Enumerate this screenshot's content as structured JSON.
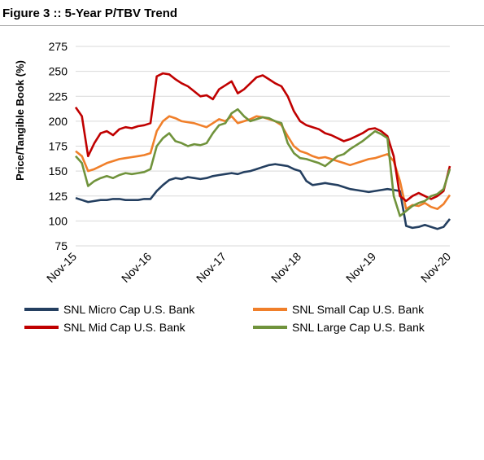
{
  "figure": {
    "title": "Figure 3 :: 5-Year P/TBV Trend"
  },
  "chart_data": {
    "type": "line",
    "title": "Figure 3 :: 5-Year P/TBV Trend",
    "xlabel": "",
    "ylabel": "Price/Tangible Book (%)",
    "ylim": [
      75,
      275
    ],
    "yticks": [
      "275",
      "250",
      "225",
      "200",
      "175",
      "150",
      "125",
      "100",
      "75"
    ],
    "xticks": [
      "Nov-15",
      "Nov-16",
      "Nov-17",
      "Nov-18",
      "Nov-19",
      "Nov-20"
    ],
    "x_unit": "months since Nov-15",
    "grid": true,
    "legend_position": "bottom",
    "series": [
      {
        "name": "SNL Micro Cap U.S. Bank",
        "color": "#243f60",
        "x": [
          0,
          1,
          2,
          3,
          4,
          5,
          6,
          7,
          8,
          9,
          10,
          11,
          12,
          13,
          14,
          15,
          16,
          17,
          18,
          19,
          20,
          21,
          22,
          23,
          24,
          25,
          26,
          27,
          28,
          29,
          30,
          31,
          32,
          33,
          34,
          35,
          36,
          37,
          38,
          39,
          40,
          41,
          42,
          43,
          44,
          45,
          46,
          47,
          48,
          49,
          50,
          51,
          52,
          53,
          54,
          55,
          56,
          57,
          58,
          59,
          60
        ],
        "values": [
          123,
          121,
          119,
          120,
          121,
          121,
          122,
          122,
          121,
          121,
          121,
          122,
          122,
          130,
          136,
          141,
          143,
          142,
          144,
          143,
          142,
          143,
          145,
          146,
          147,
          148,
          147,
          149,
          150,
          152,
          154,
          156,
          157,
          156,
          155,
          152,
          150,
          140,
          136,
          137,
          138,
          137,
          136,
          134,
          132,
          131,
          130,
          129,
          130,
          131,
          132,
          131,
          130,
          95,
          93,
          94,
          96,
          94,
          92,
          94,
          102
        ]
      },
      {
        "name": "SNL Small Cap U.S. Bank",
        "color": "#f07f2a",
        "x": [
          0,
          1,
          2,
          3,
          4,
          5,
          6,
          7,
          8,
          9,
          10,
          11,
          12,
          13,
          14,
          15,
          16,
          17,
          18,
          19,
          20,
          21,
          22,
          23,
          24,
          25,
          26,
          27,
          28,
          29,
          30,
          31,
          32,
          33,
          34,
          35,
          36,
          37,
          38,
          39,
          40,
          41,
          42,
          43,
          44,
          45,
          46,
          47,
          48,
          49,
          50,
          51,
          52,
          53,
          54,
          55,
          56,
          57,
          58,
          59,
          60
        ],
        "values": [
          170,
          165,
          150,
          152,
          155,
          158,
          160,
          162,
          163,
          164,
          165,
          166,
          168,
          190,
          200,
          205,
          203,
          200,
          199,
          198,
          196,
          194,
          198,
          202,
          200,
          205,
          198,
          200,
          202,
          205,
          204,
          202,
          200,
          196,
          185,
          175,
          170,
          168,
          165,
          163,
          164,
          162,
          160,
          158,
          156,
          158,
          160,
          162,
          163,
          165,
          167,
          160,
          140,
          112,
          116,
          115,
          118,
          114,
          112,
          117,
          126
        ]
      },
      {
        "name": "SNL Mid Cap U.S. Bank",
        "color": "#c00000",
        "x": [
          0,
          1,
          2,
          3,
          4,
          5,
          6,
          7,
          8,
          9,
          10,
          11,
          12,
          13,
          14,
          15,
          16,
          17,
          18,
          19,
          20,
          21,
          22,
          23,
          24,
          25,
          26,
          27,
          28,
          29,
          30,
          31,
          32,
          33,
          34,
          35,
          36,
          37,
          38,
          39,
          40,
          41,
          42,
          43,
          44,
          45,
          46,
          47,
          48,
          49,
          50,
          51,
          52,
          53,
          54,
          55,
          56,
          57,
          58,
          59,
          60
        ],
        "values": [
          214,
          205,
          165,
          178,
          188,
          190,
          186,
          192,
          194,
          193,
          195,
          196,
          198,
          245,
          248,
          247,
          242,
          238,
          235,
          230,
          225,
          226,
          222,
          232,
          236,
          240,
          228,
          232,
          238,
          244,
          246,
          242,
          238,
          235,
          225,
          210,
          200,
          196,
          194,
          192,
          188,
          186,
          183,
          180,
          182,
          185,
          188,
          192,
          193,
          190,
          185,
          165,
          125,
          120,
          125,
          128,
          125,
          122,
          125,
          130,
          155
        ]
      },
      {
        "name": "SNL Large Cap U.S. Bank",
        "color": "#70933c",
        "x": [
          0,
          1,
          2,
          3,
          4,
          5,
          6,
          7,
          8,
          9,
          10,
          11,
          12,
          13,
          14,
          15,
          16,
          17,
          18,
          19,
          20,
          21,
          22,
          23,
          24,
          25,
          26,
          27,
          28,
          29,
          30,
          31,
          32,
          33,
          34,
          35,
          36,
          37,
          38,
          39,
          40,
          41,
          42,
          43,
          44,
          45,
          46,
          47,
          48,
          49,
          50,
          51,
          52,
          53,
          54,
          55,
          56,
          57,
          58,
          59,
          60
        ],
        "values": [
          165,
          158,
          135,
          140,
          143,
          145,
          143,
          146,
          148,
          147,
          148,
          149,
          152,
          175,
          183,
          188,
          180,
          178,
          175,
          177,
          176,
          178,
          188,
          196,
          198,
          208,
          212,
          205,
          200,
          202,
          204,
          203,
          200,
          198,
          178,
          168,
          163,
          162,
          160,
          158,
          155,
          160,
          165,
          167,
          172,
          176,
          180,
          185,
          190,
          187,
          183,
          125,
          105,
          110,
          115,
          118,
          120,
          125,
          127,
          132,
          152
        ]
      }
    ]
  }
}
